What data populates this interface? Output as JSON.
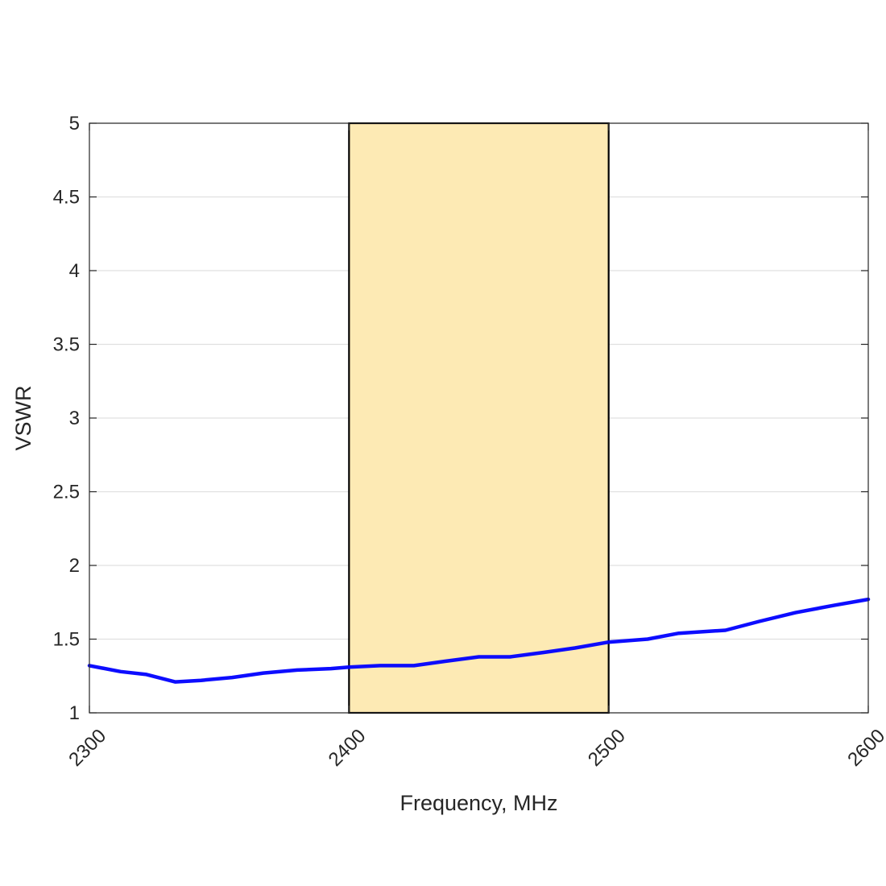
{
  "chart_data": {
    "type": "line",
    "title": "",
    "xlabel": "Frequency, MHz",
    "ylabel": "VSWR",
    "xlim": [
      2300,
      2600
    ],
    "ylim": [
      1,
      5
    ],
    "xticks": [
      2300,
      2400,
      2500,
      2600
    ],
    "xtick_labels": [
      "2300",
      "2400",
      "2500",
      "2600"
    ],
    "yticks": [
      1,
      1.5,
      2,
      2.5,
      3,
      3.5,
      4,
      4.5,
      5
    ],
    "ytick_labels": [
      "1",
      "1.5",
      "2",
      "2.5",
      "3",
      "3.5",
      "4",
      "4.5",
      "5"
    ],
    "grid": "horizontal",
    "series": [
      {
        "color": "#0000ff",
        "x": [
          2300,
          2312,
          2322,
          2333,
          2343,
          2355,
          2367,
          2380,
          2393,
          2400,
          2412,
          2425,
          2437,
          2450,
          2462,
          2475,
          2487,
          2500,
          2515,
          2527,
          2545,
          2558,
          2572,
          2587,
          2600
        ],
        "y": [
          1.32,
          1.28,
          1.26,
          1.21,
          1.22,
          1.24,
          1.27,
          1.29,
          1.3,
          1.31,
          1.32,
          1.32,
          1.35,
          1.38,
          1.38,
          1.41,
          1.44,
          1.48,
          1.5,
          1.54,
          1.56,
          1.62,
          1.68,
          1.73,
          1.77
        ]
      }
    ],
    "highlight_band": {
      "x": [
        2400,
        2500
      ],
      "y": [
        1,
        5
      ],
      "color": "#fdeab4"
    }
  }
}
